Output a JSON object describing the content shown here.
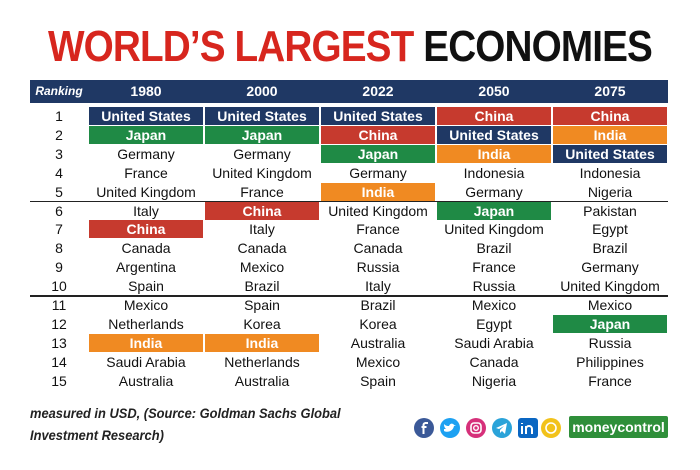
{
  "header": {
    "title_highlight": "WORLD’S LARGEST",
    "title_rest": "ECONOMIES"
  },
  "table": {
    "columns": [
      "Ranking",
      "1980",
      "2000",
      "2022",
      "2050",
      "2075"
    ],
    "highlight_colors": {
      "United States": "#1f3864",
      "Japan": "#1f8a45",
      "China": "#c63a2e",
      "India": "#f08a22"
    },
    "rows": [
      [
        "1",
        "United States",
        "United States",
        "United States",
        "China",
        "China"
      ],
      [
        "2",
        "Japan",
        "Japan",
        "China",
        "United States",
        "India"
      ],
      [
        "3",
        "Germany",
        "Germany",
        "Japan",
        "India",
        "United States"
      ],
      [
        "4",
        "France",
        "United Kingdom",
        "Germany",
        "Indonesia",
        "Indonesia"
      ],
      [
        "5",
        "United Kingdom",
        "France",
        "India",
        "Germany",
        "Nigeria"
      ],
      [
        "6",
        "Italy",
        "China",
        "United Kingdom",
        "Japan",
        "Pakistan"
      ],
      [
        "7",
        "China",
        "Italy",
        "France",
        "United Kingdom",
        "Egypt"
      ],
      [
        "8",
        "Canada",
        "Canada",
        "Canada",
        "Brazil",
        "Brazil"
      ],
      [
        "9",
        "Argentina",
        "Mexico",
        "Russia",
        "France",
        "Germany"
      ],
      [
        "10",
        "Spain",
        "Brazil",
        "Italy",
        "Russia",
        "United Kingdom"
      ],
      [
        "11",
        "Mexico",
        "Spain",
        "Brazil",
        "Mexico",
        "Mexico"
      ],
      [
        "12",
        "Netherlands",
        "Korea",
        "Korea",
        "Egypt",
        "Japan"
      ],
      [
        "13",
        "India",
        "India",
        "Australia",
        "Saudi Arabia",
        "Russia"
      ],
      [
        "14",
        "Saudi Arabia",
        "Netherlands",
        "Mexico",
        "Canada",
        "Philippines"
      ],
      [
        "15",
        "Australia",
        "Australia",
        "Spain",
        "Nigeria",
        "France"
      ]
    ]
  },
  "footer": {
    "source_lines": [
      "measured in USD, (Source: Goldman Sachs Global",
      "Investment Research)"
    ],
    "brand": "moneycontrol"
  }
}
